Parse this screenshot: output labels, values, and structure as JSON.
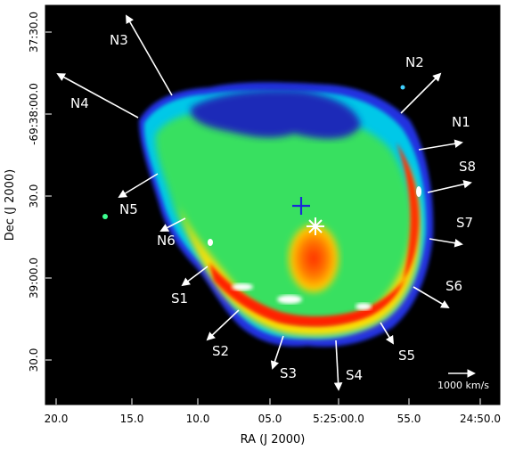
{
  "axes": {
    "xlabel": "RA (J 2000)",
    "ylabel": "Dec (J 2000)",
    "xticks": [
      "20.0",
      "15.0",
      "10.0",
      "05.0",
      "5:25:00.0",
      "55.0",
      "24:50.0"
    ],
    "yticks": [
      "37:30.0",
      "-69:38:00.0",
      "30.0",
      "39:00.0",
      "30.0"
    ]
  },
  "vector_labels": [
    "N1",
    "N2",
    "N3",
    "N4",
    "N5",
    "N6",
    "S1",
    "S2",
    "S3",
    "S4",
    "S5",
    "S6",
    "S7",
    "S8"
  ],
  "scale_bar_label": "1000 km/s",
  "colors": {
    "background": "#000000",
    "frame": "#ffffff",
    "arrow": "#ffffff",
    "cross_center": "#1a2bd6",
    "star_marker": "#ffffff"
  }
}
